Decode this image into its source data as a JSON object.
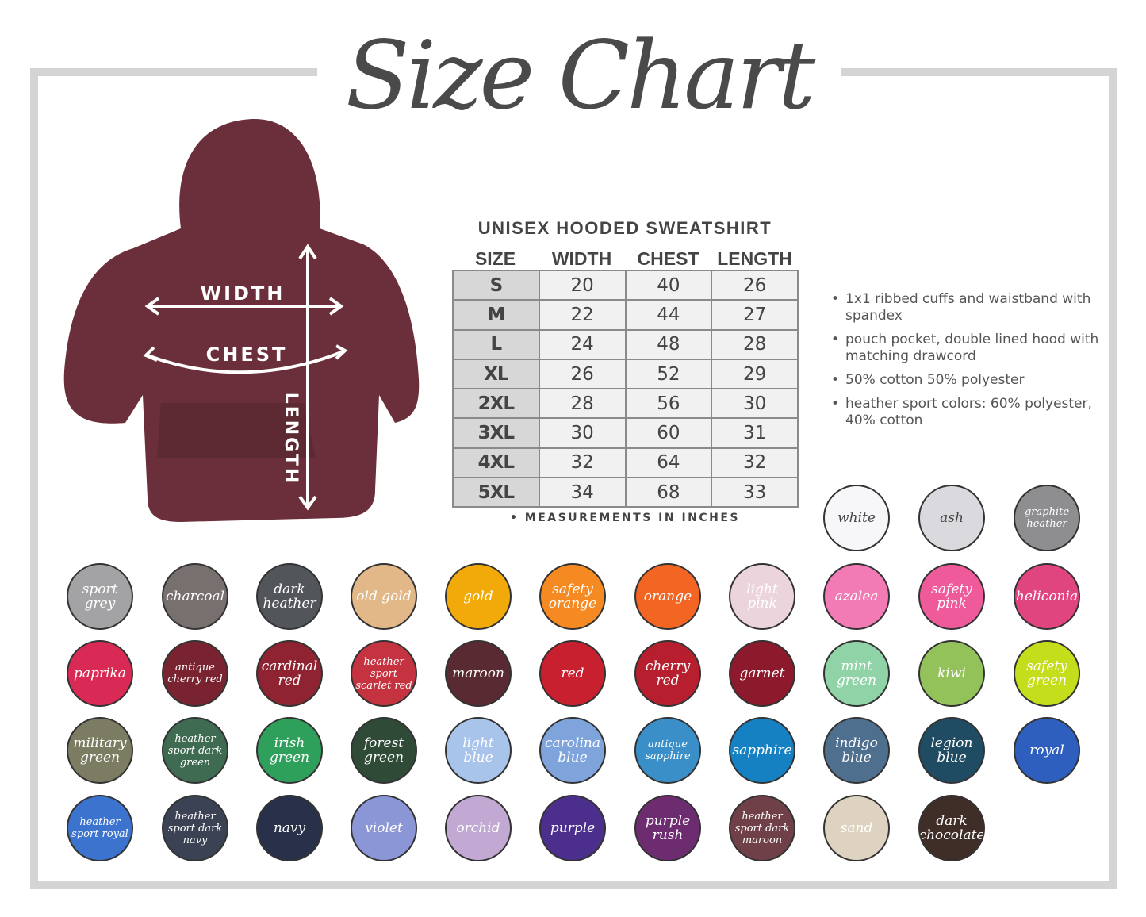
{
  "title": "Size Chart",
  "product_title": "UNISEX HOODED SWEATSHIRT",
  "diagram_labels": {
    "width": "WIDTH",
    "chest": "CHEST",
    "length": "LENGTH"
  },
  "hoodie_color": "#6a2f3a",
  "table": {
    "headers": [
      "SIZE",
      "WIDTH",
      "CHEST",
      "LENGTH"
    ],
    "rows": [
      [
        "S",
        "20",
        "40",
        "26"
      ],
      [
        "M",
        "22",
        "44",
        "27"
      ],
      [
        "L",
        "24",
        "48",
        "28"
      ],
      [
        "XL",
        "26",
        "52",
        "29"
      ],
      [
        "2XL",
        "28",
        "56",
        "30"
      ],
      [
        "3XL",
        "30",
        "60",
        "31"
      ],
      [
        "4XL",
        "32",
        "64",
        "32"
      ],
      [
        "5XL",
        "34",
        "68",
        "33"
      ]
    ]
  },
  "note": "• MEASUREMENTS IN INCHES",
  "features": [
    "1x1 ribbed cuffs and waistband with spandex",
    "pouch pocket, double lined hood with matching drawcord",
    "50% cotton 50% polyester",
    "heather sport colors: 60% polyester, 40% cotton"
  ],
  "colors": [
    {
      "name": "white",
      "hex": "#f7f7f9",
      "text": "#444"
    },
    {
      "name": "ash",
      "hex": "#d9d9de",
      "text": "#444"
    },
    {
      "name": "graphite heather",
      "hex": "#8e8e90",
      "text": "#fff"
    },
    {
      "name": "sport grey",
      "hex": "#a3a3a5",
      "text": "#fff"
    },
    {
      "name": "charcoal",
      "hex": "#77706f",
      "text": "#fff"
    },
    {
      "name": "dark heather",
      "hex": "#52555a",
      "text": "#fff"
    },
    {
      "name": "old gold",
      "hex": "#e2b888",
      "text": "#fff"
    },
    {
      "name": "gold",
      "hex": "#f2aa0a",
      "text": "#fff"
    },
    {
      "name": "safety orange",
      "hex": "#f58a22",
      "text": "#fff"
    },
    {
      "name": "orange",
      "hex": "#f26522",
      "text": "#fff"
    },
    {
      "name": "light pink",
      "hex": "#ecd4dc",
      "text": "#fff"
    },
    {
      "name": "azalea",
      "hex": "#f27bb5",
      "text": "#fff"
    },
    {
      "name": "safety pink",
      "hex": "#ef5a9a",
      "text": "#fff"
    },
    {
      "name": "heliconia",
      "hex": "#e0457f",
      "text": "#fff"
    },
    {
      "name": "paprika",
      "hex": "#d92a55",
      "text": "#fff"
    },
    {
      "name": "antique cherry red",
      "hex": "#7a2330",
      "text": "#fff"
    },
    {
      "name": "cardinal red",
      "hex": "#8f2331",
      "text": "#fff"
    },
    {
      "name": "heather sport scarlet red",
      "hex": "#c53240",
      "text": "#fff"
    },
    {
      "name": "maroon",
      "hex": "#5a2a33",
      "text": "#fff"
    },
    {
      "name": "red",
      "hex": "#c8202e",
      "text": "#fff"
    },
    {
      "name": "cherry red",
      "hex": "#b81f2e",
      "text": "#fff"
    },
    {
      "name": "garnet",
      "hex": "#8c1a2c",
      "text": "#fff"
    },
    {
      "name": "mint green",
      "hex": "#8fd3a6",
      "text": "#fff"
    },
    {
      "name": "kiwi",
      "hex": "#94c25a",
      "text": "#fff"
    },
    {
      "name": "safety green",
      "hex": "#c4de1c",
      "text": "#fff"
    },
    {
      "name": "military green",
      "hex": "#7c7c62",
      "text": "#fff"
    },
    {
      "name": "heather sport dark green",
      "hex": "#3e6b52",
      "text": "#fff"
    },
    {
      "name": "irish green",
      "hex": "#2fa05b",
      "text": "#fff"
    },
    {
      "name": "forest green",
      "hex": "#2f4a37",
      "text": "#fff"
    },
    {
      "name": "light blue",
      "hex": "#a9c4ea",
      "text": "#fff"
    },
    {
      "name": "carolina blue",
      "hex": "#7ea4db",
      "text": "#fff"
    },
    {
      "name": "antique sapphire",
      "hex": "#3b8fc9",
      "text": "#fff"
    },
    {
      "name": "sapphire",
      "hex": "#1681c2",
      "text": "#fff"
    },
    {
      "name": "indigo blue",
      "hex": "#4f6f8e",
      "text": "#fff"
    },
    {
      "name": "legion blue",
      "hex": "#1f4b63",
      "text": "#fff"
    },
    {
      "name": "royal",
      "hex": "#2e5fbf",
      "text": "#fff"
    },
    {
      "name": "heather sport royal",
      "hex": "#3c73cf",
      "text": "#fff"
    },
    {
      "name": "heather sport dark navy",
      "hex": "#3b4253",
      "text": "#fff"
    },
    {
      "name": "navy",
      "hex": "#283149",
      "text": "#fff"
    },
    {
      "name": "violet",
      "hex": "#8a96d6",
      "text": "#fff"
    },
    {
      "name": "orchid",
      "hex": "#c2a9d3",
      "text": "#fff"
    },
    {
      "name": "purple",
      "hex": "#4c2f8c",
      "text": "#fff"
    },
    {
      "name": "purple rush",
      "hex": "#6d2c70",
      "text": "#fff"
    },
    {
      "name": "heather sport dark maroon",
      "hex": "#6f4048",
      "text": "#fff"
    },
    {
      "name": "sand",
      "hex": "#ddd3c0",
      "text": "#fff"
    },
    {
      "name": "dark chocolate",
      "hex": "#3f2d28",
      "text": "#fff"
    }
  ]
}
